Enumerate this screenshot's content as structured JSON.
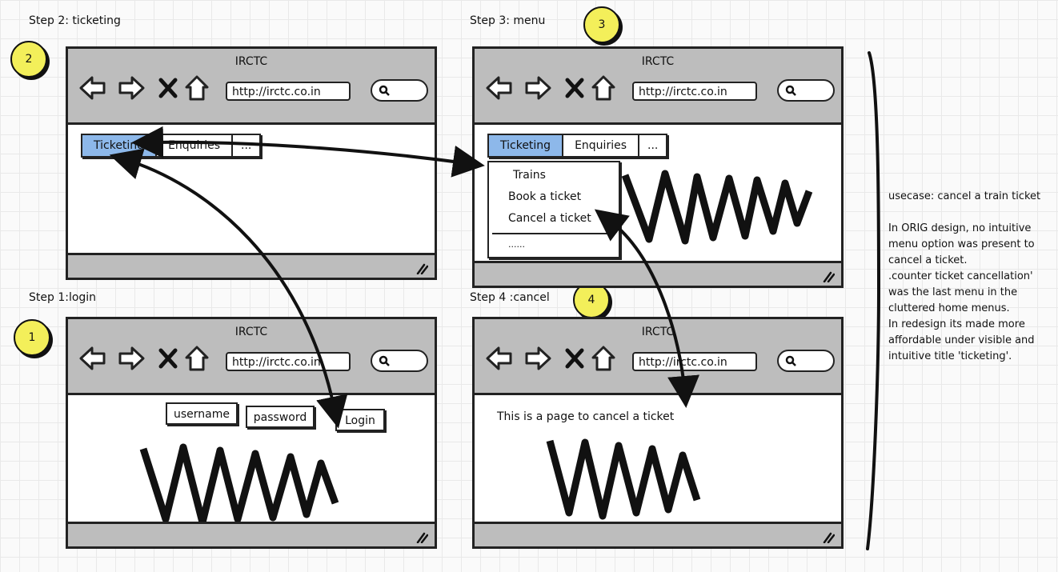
{
  "steps": {
    "step1": {
      "label": "Step 1:login",
      "number": "1"
    },
    "step2": {
      "label": "Step 2: ticketing",
      "number": "2"
    },
    "step3": {
      "label": "Step 3: menu",
      "number": "3"
    },
    "step4": {
      "label": "Step 4 :cancel",
      "number": "4"
    }
  },
  "browser": {
    "title": "IRCTC",
    "url": "http://irctc.co.in"
  },
  "login": {
    "username": "username",
    "password": "password",
    "login_button": "Login"
  },
  "tabs": {
    "ticketing": "Ticketing",
    "enquiries": "Enquiries",
    "more": "..."
  },
  "menu": {
    "trains": "Trains",
    "book": "Book a ticket",
    "cancel": "Cancel a ticket",
    "more": "......"
  },
  "cancel_page": {
    "text": "This is a page to cancel a ticket"
  },
  "notes": [
    "usecase: cancel a train ticket",
    "",
    "In ORIG design, no intuitive menu option was present to cancel a ticket.",
    ".counter ticket cancellation' was the last menu in the cluttered home menus.",
    "In redesign its made more affordable under visible and intuitive title 'ticketing'."
  ],
  "colors": {
    "badge": "#f3ef5a",
    "active_tab": "#8db8ea",
    "chrome": "#bdbdbd"
  }
}
